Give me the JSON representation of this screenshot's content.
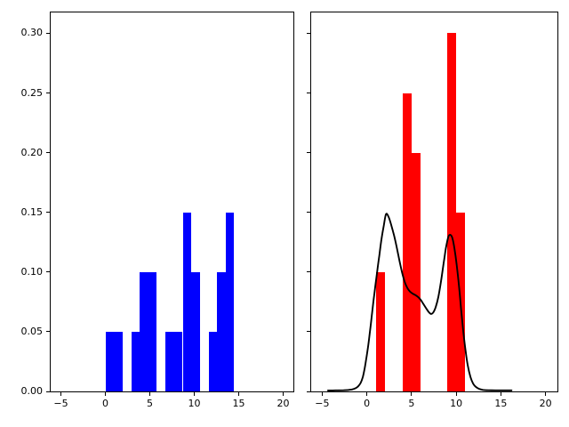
{
  "figure": {
    "background": "#ffffff",
    "title": "",
    "panel_count": 2
  },
  "chart_data": [
    {
      "type": "bar",
      "panel": "left",
      "title": "",
      "xlabel": "",
      "ylabel": "",
      "bar_color": "#0000ff",
      "grid": false,
      "legend": null,
      "xlim": [
        -6.25,
        21.3
      ],
      "ylim": [
        0,
        0.3178
      ],
      "xticks": [
        -5,
        0,
        5,
        10,
        15,
        20
      ],
      "xtick_labels": [
        "−5",
        "0",
        "5",
        "10",
        "15",
        "20"
      ],
      "yticks": [
        0.0,
        0.05,
        0.1,
        0.15,
        0.2,
        0.25,
        0.3
      ],
      "ytick_labels": [
        "0.00",
        "0.05",
        "0.10",
        "0.15",
        "0.20",
        "0.25",
        "0.30"
      ],
      "bars": [
        {
          "x0": 0.0,
          "x1": 1.933,
          "height": 0.05
        },
        {
          "x0": 2.9,
          "x1": 3.867,
          "height": 0.05
        },
        {
          "x0": 3.867,
          "x1": 5.8,
          "height": 0.1
        },
        {
          "x0": 6.767,
          "x1": 8.7,
          "height": 0.05
        },
        {
          "x0": 8.7,
          "x1": 9.667,
          "height": 0.15
        },
        {
          "x0": 9.667,
          "x1": 10.633,
          "height": 0.1
        },
        {
          "x0": 11.6,
          "x1": 12.567,
          "height": 0.05
        },
        {
          "x0": 12.567,
          "x1": 13.533,
          "height": 0.1
        },
        {
          "x0": 13.533,
          "x1": 14.5,
          "height": 0.15
        }
      ]
    },
    {
      "type": "bar+line",
      "panel": "right",
      "title": "",
      "xlabel": "",
      "ylabel": "",
      "bar_color": "#ff0000",
      "grid": false,
      "legend": null,
      "xlim": [
        -6.25,
        21.3
      ],
      "ylim": [
        0,
        0.3178
      ],
      "xticks": [
        -5,
        0,
        5,
        10,
        15,
        20
      ],
      "xtick_labels": [
        "−5",
        "0",
        "5",
        "10",
        "15",
        "20"
      ],
      "yticks": [
        0.0,
        0.05,
        0.1,
        0.15,
        0.2,
        0.25,
        0.3
      ],
      "ytick_labels": [],
      "bars": [
        {
          "x0": 1,
          "x1": 2,
          "height": 0.1
        },
        {
          "x0": 4,
          "x1": 5,
          "height": 0.25
        },
        {
          "x0": 5,
          "x1": 6,
          "height": 0.2
        },
        {
          "x0": 9,
          "x1": 10,
          "height": 0.3
        },
        {
          "x0": 10,
          "x1": 11,
          "height": 0.15
        }
      ],
      "kde": {
        "color": "#000000",
        "line_width": 1.9,
        "points": [
          [
            -4.35,
            0.0008
          ],
          [
            -3.8,
            0.0008
          ],
          [
            -3.2,
            0.0009
          ],
          [
            -2.6,
            0.001
          ],
          [
            -2.1,
            0.0012
          ],
          [
            -1.7,
            0.0016
          ],
          [
            -1.3,
            0.0025
          ],
          [
            -1.0,
            0.004
          ],
          [
            -0.7,
            0.007
          ],
          [
            -0.45,
            0.012
          ],
          [
            -0.25,
            0.019
          ],
          [
            -0.05,
            0.028
          ],
          [
            0.15,
            0.038
          ],
          [
            0.35,
            0.05
          ],
          [
            0.55,
            0.063
          ],
          [
            0.75,
            0.076
          ],
          [
            0.95,
            0.088
          ],
          [
            1.15,
            0.1
          ],
          [
            1.4,
            0.114
          ],
          [
            1.65,
            0.128
          ],
          [
            1.9,
            0.139
          ],
          [
            2.15,
            0.1485
          ],
          [
            2.45,
            0.146
          ],
          [
            2.75,
            0.139
          ],
          [
            3.05,
            0.1305
          ],
          [
            3.35,
            0.1205
          ],
          [
            3.65,
            0.1095
          ],
          [
            3.95,
            0.0995
          ],
          [
            4.25,
            0.0915
          ],
          [
            4.55,
            0.0865
          ],
          [
            4.85,
            0.0835
          ],
          [
            5.15,
            0.0818
          ],
          [
            5.45,
            0.0806
          ],
          [
            5.75,
            0.079
          ],
          [
            6.05,
            0.0765
          ],
          [
            6.35,
            0.073
          ],
          [
            6.65,
            0.0695
          ],
          [
            6.9,
            0.0668
          ],
          [
            7.15,
            0.065
          ],
          [
            7.4,
            0.0658
          ],
          [
            7.7,
            0.0705
          ],
          [
            8.0,
            0.079
          ],
          [
            8.3,
            0.092
          ],
          [
            8.6,
            0.1075
          ],
          [
            8.85,
            0.12
          ],
          [
            9.1,
            0.129
          ],
          [
            9.3,
            0.1312
          ],
          [
            9.55,
            0.129
          ],
          [
            9.8,
            0.12
          ],
          [
            10.05,
            0.1065
          ],
          [
            10.3,
            0.0895
          ],
          [
            10.55,
            0.069
          ],
          [
            10.8,
            0.05
          ],
          [
            11.05,
            0.034
          ],
          [
            11.3,
            0.0215
          ],
          [
            11.6,
            0.012
          ],
          [
            11.9,
            0.0065
          ],
          [
            12.2,
            0.0038
          ],
          [
            12.6,
            0.002
          ],
          [
            13.0,
            0.0013
          ],
          [
            13.6,
            0.001
          ],
          [
            14.4,
            0.0009
          ],
          [
            15.3,
            0.0009
          ],
          [
            16.2,
            0.0009
          ]
        ]
      }
    }
  ]
}
